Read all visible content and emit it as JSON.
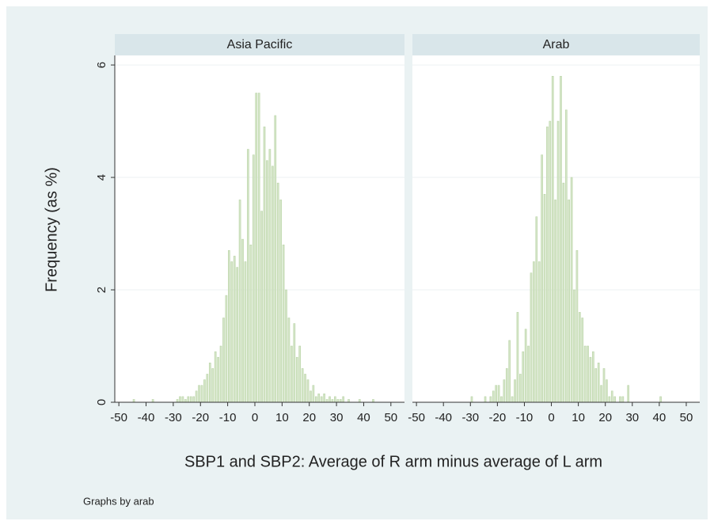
{
  "ylabel": "Frequency (as %)",
  "xlabel": "SBP1 and SBP2: Average of R arm minus average of L arm",
  "note": "Graphs by arab",
  "chart_data": [
    {
      "type": "histogram",
      "title": "Asia Pacific",
      "color": "#d5e6c8",
      "edge": "#b9d3a6",
      "bins": [
        -50,
        -49,
        -48,
        -47,
        -46,
        -45,
        -44,
        -43,
        -42,
        -41,
        -40,
        -39,
        -38,
        -37,
        -36,
        -35,
        -34,
        -33,
        -32,
        -31,
        -30,
        -29,
        -28,
        -27,
        -26,
        -25,
        -24,
        -23,
        -22,
        -21,
        -20,
        -19,
        -18,
        -17,
        -16,
        -15,
        -14,
        -13,
        -12,
        -11,
        -10,
        -9,
        -8,
        -7,
        -6,
        -5,
        -4,
        -3,
        -2,
        -1,
        0,
        1,
        2,
        3,
        4,
        5,
        6,
        7,
        8,
        9,
        10,
        11,
        12,
        13,
        14,
        15,
        16,
        17,
        18,
        19,
        20,
        21,
        22,
        23,
        24,
        25,
        26,
        27,
        28,
        29,
        30,
        31,
        32,
        33,
        34,
        35,
        36,
        37,
        38,
        39,
        40,
        41,
        42,
        43,
        44,
        45,
        46,
        47,
        48,
        49,
        50
      ],
      "counts": [
        0,
        0,
        0,
        0,
        0,
        0.05,
        0,
        0,
        0,
        0,
        0,
        0,
        0.05,
        0,
        0,
        0,
        0,
        0,
        0,
        0,
        0,
        0.05,
        0.1,
        0.1,
        0.05,
        0.1,
        0.1,
        0.1,
        0.2,
        0.3,
        0.3,
        0.4,
        0.5,
        0.7,
        0.6,
        0.9,
        0.8,
        1.0,
        1.5,
        1.9,
        2.7,
        2.5,
        2.6,
        2.4,
        3.6,
        2.9,
        2.5,
        4.5,
        2.8,
        4.4,
        5.5,
        5.5,
        3.4,
        4.9,
        4.3,
        4.5,
        4.2,
        5.1,
        3.9,
        3.6,
        2.8,
        2.0,
        1.5,
        1.0,
        1.4,
        0.8,
        1.0,
        0.6,
        0.5,
        0.4,
        0.2,
        0.3,
        0.1,
        0.15,
        0.1,
        0.15,
        0.05,
        0.1,
        0.05,
        0.1,
        0.05,
        0.05,
        0.1,
        0,
        0.05,
        0,
        0,
        0,
        0.05,
        0,
        0,
        0,
        0,
        0.05,
        0,
        0,
        0,
        0,
        0,
        0
      ],
      "xlim": [
        -51.5,
        55
      ],
      "ylim": [
        0,
        6.17
      ],
      "xticks": [
        -50,
        -40,
        -30,
        -20,
        -10,
        0,
        10,
        20,
        30,
        40,
        50
      ],
      "yticks": [
        0,
        2,
        4,
        6
      ],
      "grid": true
    },
    {
      "type": "histogram",
      "title": "Arab",
      "color": "#d5e6c8",
      "edge": "#b9d3a6",
      "bins": [
        -50,
        -49,
        -48,
        -47,
        -46,
        -45,
        -44,
        -43,
        -42,
        -41,
        -40,
        -39,
        -38,
        -37,
        -36,
        -35,
        -34,
        -33,
        -32,
        -31,
        -30,
        -29,
        -28,
        -27,
        -26,
        -25,
        -24,
        -23,
        -22,
        -21,
        -20,
        -19,
        -18,
        -17,
        -16,
        -15,
        -14,
        -13,
        -12,
        -11,
        -10,
        -9,
        -8,
        -7,
        -6,
        -5,
        -4,
        -3,
        -2,
        -1,
        0,
        1,
        2,
        3,
        4,
        5,
        6,
        7,
        8,
        9,
        10,
        11,
        12,
        13,
        14,
        15,
        16,
        17,
        18,
        19,
        20,
        21,
        22,
        23,
        24,
        25,
        26,
        27,
        28,
        29,
        30,
        31,
        32,
        33,
        34,
        35,
        36,
        37,
        38,
        39,
        40,
        41,
        42,
        43,
        44,
        45,
        46,
        47,
        48,
        49,
        50
      ],
      "counts": [
        0,
        0,
        0,
        0,
        0,
        0,
        0,
        0,
        0,
        0,
        0,
        0,
        0,
        0,
        0,
        0,
        0,
        0,
        0,
        0,
        0.1,
        0,
        0,
        0,
        0,
        0.1,
        0,
        0.1,
        0.2,
        0.3,
        0.3,
        0.1,
        0.4,
        0.6,
        1.1,
        0.1,
        0.4,
        1.6,
        0.5,
        0.9,
        1.3,
        1.0,
        2.3,
        2.5,
        3.3,
        2.5,
        4.4,
        3.7,
        4.9,
        5.0,
        5.8,
        3.6,
        5.0,
        5.8,
        3.9,
        5.2,
        3.6,
        4.0,
        2.0,
        2.7,
        1.6,
        1.5,
        1.0,
        1.0,
        0.8,
        0.9,
        0.6,
        0.7,
        0.3,
        0.6,
        0.4,
        0.1,
        0.2,
        0.1,
        0,
        0.1,
        0.1,
        0,
        0.3,
        0,
        0,
        0,
        0,
        0,
        0,
        0,
        0,
        0,
        0,
        0,
        0.1,
        0,
        0,
        0,
        0,
        0,
        0,
        0,
        0,
        0
      ],
      "xlim": [
        -51.5,
        55
      ],
      "ylim": [
        0,
        6.17
      ],
      "xticks": [
        -50,
        -40,
        -30,
        -20,
        -10,
        0,
        10,
        20,
        30,
        40,
        50
      ],
      "yticks": [
        0,
        2,
        4,
        6
      ],
      "grid": true
    }
  ]
}
